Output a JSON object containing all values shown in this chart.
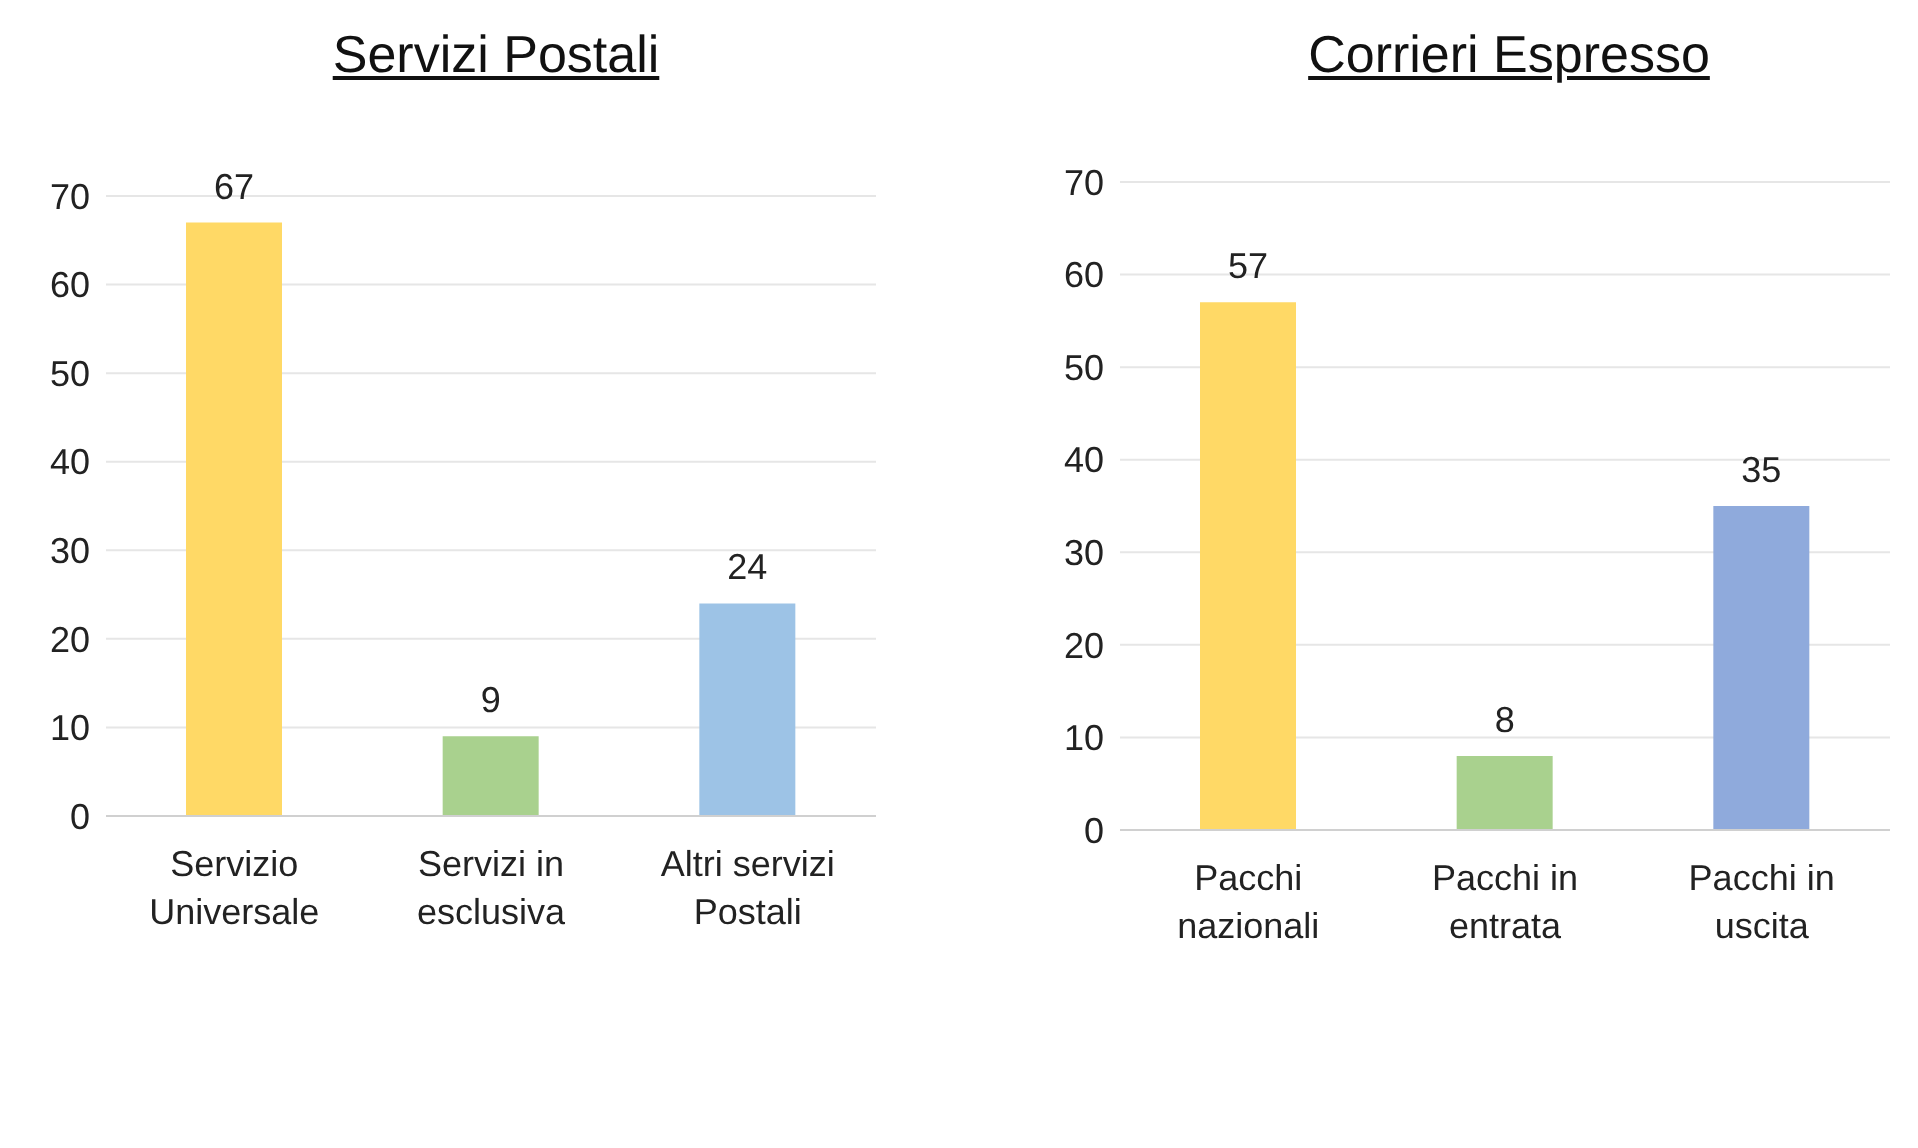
{
  "chart_data": [
    {
      "type": "bar",
      "title": "Servizi Postali",
      "categories": [
        "Servizio Universale",
        "Servizi in esclusiva",
        "Altri servizi Postali"
      ],
      "values": [
        67,
        9,
        24
      ],
      "colors": [
        "#ffd966",
        "#a9d18e",
        "#9dc3e6"
      ],
      "ylim": [
        0,
        70
      ],
      "yticks": [
        0,
        10,
        20,
        30,
        40,
        50,
        60,
        70
      ],
      "grid": "y",
      "data_labels": true
    },
    {
      "type": "bar",
      "title": "Corrieri Espresso",
      "categories": [
        "Pacchi nazionali",
        "Pacchi in entrata",
        "Pacchi in uscita"
      ],
      "values": [
        57,
        8,
        35
      ],
      "colors": [
        "#ffd966",
        "#a9d18e",
        "#8faadc"
      ],
      "ylim": [
        0,
        70
      ],
      "yticks": [
        0,
        10,
        20,
        30,
        40,
        50,
        60,
        70
      ],
      "grid": "y",
      "data_labels": true
    }
  ]
}
